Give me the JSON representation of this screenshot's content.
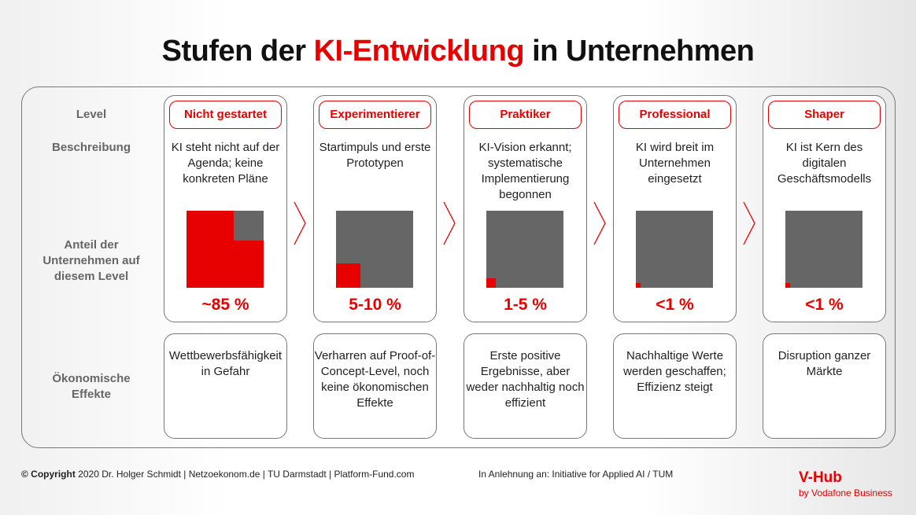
{
  "title": {
    "pre": "Stufen der ",
    "highlight": "KI-Entwicklung",
    "post": " in Unternehmen"
  },
  "row_labels": {
    "level": "Level",
    "beschreibung": "Beschreibung",
    "anteil": "Anteil der Unternehmen auf diesem Level",
    "effekte": "Ökonomische Effekte"
  },
  "colors": {
    "accent": "#e60000",
    "gray": "#666666"
  },
  "levels": [
    {
      "name": "Nicht gestartet",
      "description": "KI steht nicht auf der Agenda; keine konkreten Pläne",
      "share_label": "~85 %",
      "share": 0.85,
      "effect": "Wettbewerbsfähigkeit in Gefahr"
    },
    {
      "name": "Experimentierer",
      "description": "Startimpuls und erste Prototypen",
      "share_label": "5-10 %",
      "share": 0.1,
      "effect": "Verharren auf Proof-of-Concept-Level, noch keine ökonomischen Effekte"
    },
    {
      "name": "Praktiker",
      "description": "KI-Vision erkannt; systematische Implementierung begonnen",
      "share_label": "1-5 %",
      "share": 0.015,
      "effect": "Erste positive Ergebnisse, aber weder nachhaltig noch effizient"
    },
    {
      "name": "Professional",
      "description": "KI wird breit im Unternehmen eingesetzt",
      "share_label": "<1 %",
      "share": 0.004,
      "effect": "Nachhaltige Werte werden geschaffen; Effizienz steigt"
    },
    {
      "name": "Shaper",
      "description": "KI ist Kern des digitalen Geschäftsmodells",
      "share_label": "<1 %",
      "share": 0.004,
      "effect": "Disruption ganzer Märkte"
    }
  ],
  "footer": {
    "copyright_bold": "© Copyright",
    "copyright": " 2020 Dr. Holger Schmidt | Netzoekonom.de | TU Darmstadt | Platform-Fund.com",
    "source": "In Anlehnung an: Initiative for Applied AI / TUM",
    "brand": "V-Hub",
    "brand_sub": "by Vodafone Business"
  }
}
